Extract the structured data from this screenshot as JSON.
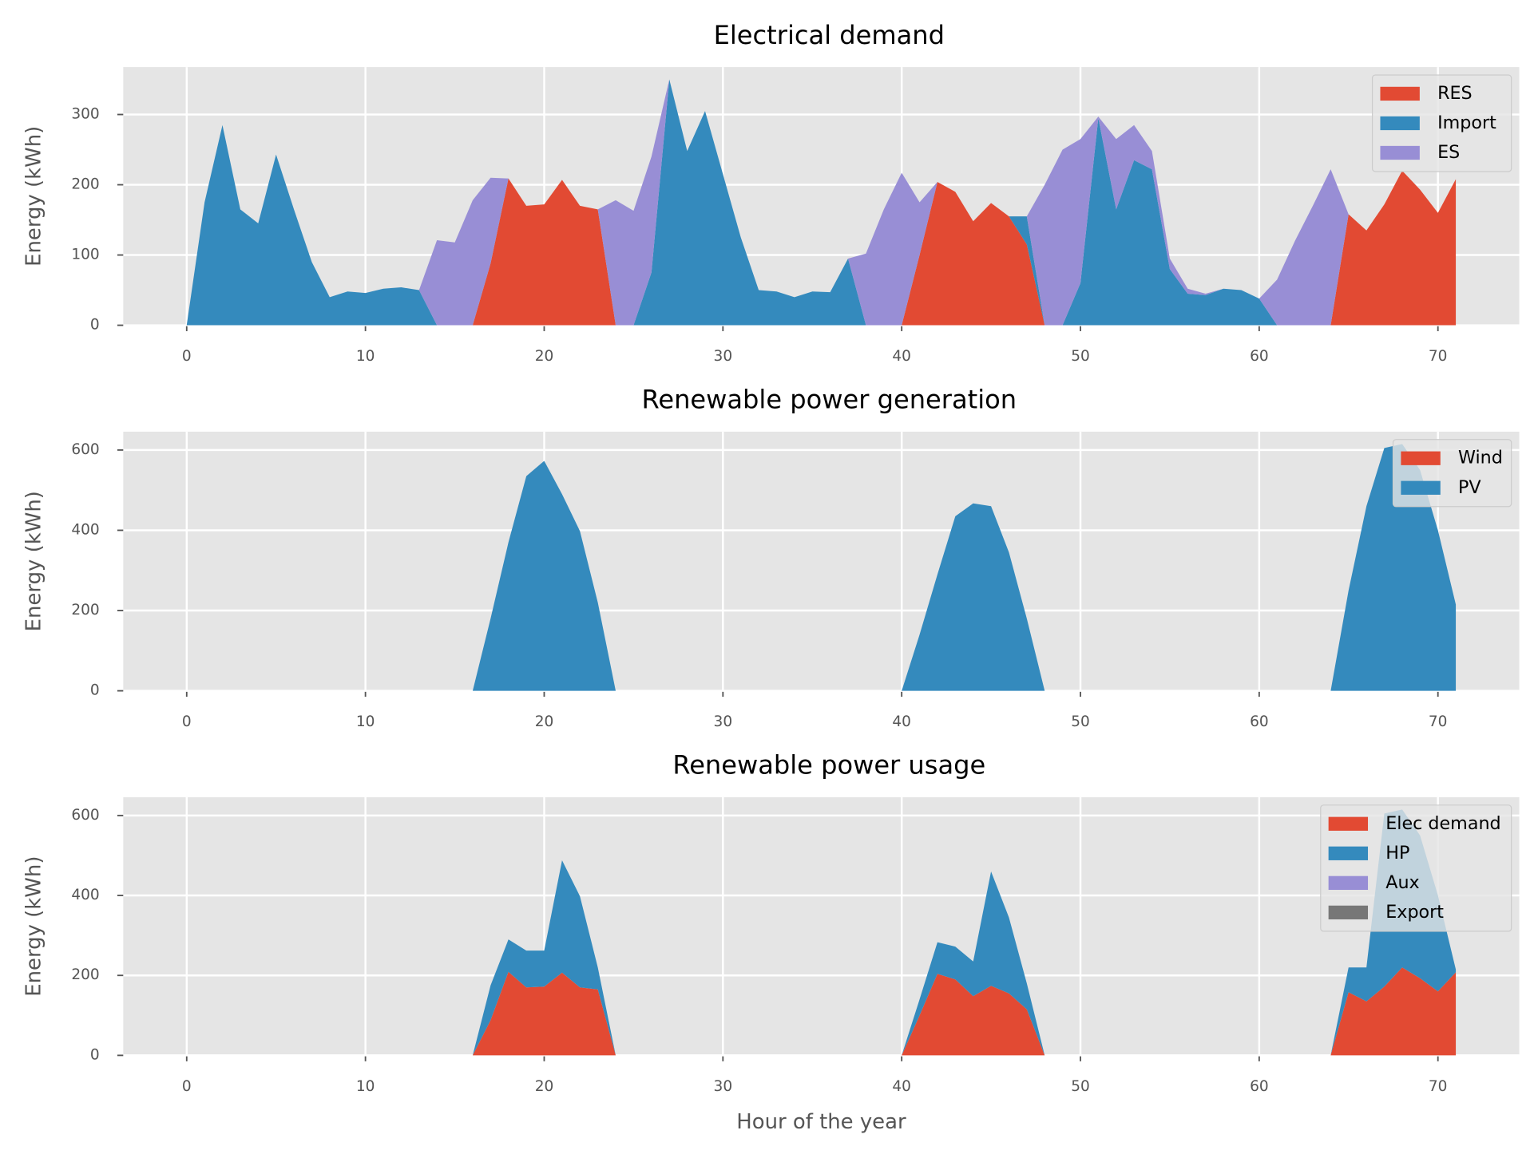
{
  "chart_data": [
    {
      "type": "stacked-area",
      "title": "Electrical demand",
      "ylabel": "Energy (kWh)",
      "x": [
        0,
        1,
        2,
        3,
        4,
        5,
        6,
        7,
        8,
        9,
        10,
        11,
        12,
        13,
        14,
        15,
        16,
        17,
        18,
        19,
        20,
        21,
        22,
        23,
        24,
        25,
        26,
        27,
        28,
        29,
        30,
        31,
        32,
        33,
        34,
        35,
        36,
        37,
        38,
        39,
        40,
        41,
        42,
        43,
        44,
        45,
        46,
        47,
        48,
        49,
        50,
        51,
        52,
        53,
        54,
        55,
        56,
        57,
        58,
        59,
        60,
        61,
        62,
        63,
        64,
        65,
        66,
        67,
        68,
        69,
        70,
        71
      ],
      "xlim": [
        -3.55,
        74.55
      ],
      "xticks": [
        0,
        10,
        20,
        30,
        40,
        50,
        60,
        70
      ],
      "ylim": [
        0,
        367.5
      ],
      "yticks": [
        0,
        100,
        200,
        300
      ],
      "grid": true,
      "legend": "upper right",
      "series": [
        {
          "name": "RES",
          "color": "#E24A33",
          "values": [
            0,
            0,
            0,
            0,
            0,
            0,
            0,
            0,
            0,
            0,
            0,
            0,
            0,
            0,
            0,
            0,
            0,
            88,
            209,
            170,
            172,
            207,
            170,
            165,
            0,
            0,
            0,
            0,
            0,
            0,
            0,
            0,
            0,
            0,
            0,
            0,
            0,
            0,
            0,
            0,
            0,
            100,
            204,
            190,
            148,
            174,
            155,
            115,
            0,
            0,
            0,
            0,
            0,
            0,
            0,
            0,
            0,
            0,
            0,
            0,
            0,
            0,
            0,
            0,
            0,
            158,
            135,
            172,
            220,
            193,
            160,
            208
          ]
        },
        {
          "name": "Import",
          "color": "#348ABD",
          "values": [
            0,
            175,
            285,
            165,
            145,
            243,
            165,
            90,
            40,
            48,
            46,
            52,
            54,
            50,
            0,
            0,
            0,
            0,
            0,
            0,
            0,
            0,
            0,
            0,
            0,
            0,
            75,
            350,
            248,
            305,
            215,
            125,
            50,
            48,
            40,
            48,
            47,
            95,
            0,
            0,
            0,
            0,
            0,
            0,
            0,
            0,
            0,
            40,
            0,
            0,
            60,
            295,
            165,
            235,
            222,
            80,
            45,
            43,
            52,
            50,
            38,
            0,
            0,
            0,
            0,
            0,
            0,
            0,
            0,
            0,
            0,
            0
          ]
        },
        {
          "name": "ES",
          "color": "#988ED5",
          "values": [
            0,
            0,
            0,
            0,
            0,
            0,
            0,
            0,
            0,
            0,
            0,
            0,
            0,
            0,
            121,
            118,
            178,
            122,
            0,
            0,
            0,
            0,
            0,
            0,
            178,
            163,
            165,
            0,
            0,
            0,
            0,
            0,
            0,
            0,
            0,
            0,
            0,
            0,
            102,
            165,
            217,
            75,
            0,
            0,
            0,
            0,
            0,
            0,
            200,
            250,
            205,
            2,
            100,
            50,
            26,
            15,
            7,
            2,
            0,
            0,
            0,
            65,
            120,
            170,
            222,
            0,
            0,
            0,
            0,
            0,
            0,
            0
          ]
        }
      ]
    },
    {
      "type": "stacked-area",
      "title": "Renewable power generation",
      "ylabel": "Energy (kWh)",
      "x": [
        0,
        1,
        2,
        3,
        4,
        5,
        6,
        7,
        8,
        9,
        10,
        11,
        12,
        13,
        14,
        15,
        16,
        17,
        18,
        19,
        20,
        21,
        22,
        23,
        24,
        25,
        26,
        27,
        28,
        29,
        30,
        31,
        32,
        33,
        34,
        35,
        36,
        37,
        38,
        39,
        40,
        41,
        42,
        43,
        44,
        45,
        46,
        47,
        48,
        49,
        50,
        51,
        52,
        53,
        54,
        55,
        56,
        57,
        58,
        59,
        60,
        61,
        62,
        63,
        64,
        65,
        66,
        67,
        68,
        69,
        70,
        71
      ],
      "xlim": [
        -3.55,
        74.55
      ],
      "xticks": [
        0,
        10,
        20,
        30,
        40,
        50,
        60,
        70
      ],
      "ylim": [
        0,
        645.75
      ],
      "yticks": [
        0,
        200,
        400,
        600
      ],
      "grid": true,
      "legend": "upper right",
      "series": [
        {
          "name": "Wind",
          "color": "#E24A33",
          "values": [
            0,
            0,
            0,
            0,
            0,
            0,
            0,
            0,
            0,
            0,
            0,
            0,
            0,
            0,
            0,
            0,
            0,
            0,
            0,
            0,
            0,
            0,
            0,
            0,
            0,
            0,
            0,
            0,
            0,
            0,
            0,
            0,
            0,
            0,
            0,
            0,
            0,
            0,
            0,
            0,
            0,
            0,
            0,
            0,
            0,
            0,
            0,
            0,
            0,
            0,
            0,
            0,
            0,
            0,
            0,
            0,
            0,
            0,
            0,
            0,
            0,
            0,
            0,
            0,
            0,
            0,
            0,
            0,
            0,
            0,
            0,
            0
          ]
        },
        {
          "name": "PV",
          "color": "#348ABD",
          "values": [
            0,
            0,
            0,
            0,
            0,
            0,
            0,
            0,
            0,
            0,
            0,
            0,
            0,
            0,
            0,
            0,
            0,
            180,
            370,
            535,
            573,
            490,
            398,
            220,
            0,
            0,
            0,
            0,
            0,
            0,
            0,
            0,
            0,
            0,
            0,
            0,
            0,
            0,
            0,
            0,
            0,
            140,
            290,
            435,
            467,
            460,
            345,
            180,
            0,
            0,
            0,
            0,
            0,
            0,
            0,
            0,
            0,
            0,
            0,
            0,
            0,
            0,
            0,
            0,
            0,
            250,
            460,
            605,
            615,
            550,
            400,
            215
          ]
        }
      ]
    },
    {
      "type": "stacked-area",
      "title": "Renewable power usage",
      "ylabel": "Energy (kWh)",
      "xlabel": "Hour of the year",
      "x": [
        0,
        1,
        2,
        3,
        4,
        5,
        6,
        7,
        8,
        9,
        10,
        11,
        12,
        13,
        14,
        15,
        16,
        17,
        18,
        19,
        20,
        21,
        22,
        23,
        24,
        25,
        26,
        27,
        28,
        29,
        30,
        31,
        32,
        33,
        34,
        35,
        36,
        37,
        38,
        39,
        40,
        41,
        42,
        43,
        44,
        45,
        46,
        47,
        48,
        49,
        50,
        51,
        52,
        53,
        54,
        55,
        56,
        57,
        58,
        59,
        60,
        61,
        62,
        63,
        64,
        65,
        66,
        67,
        68,
        69,
        70,
        71
      ],
      "xlim": [
        -3.55,
        74.55
      ],
      "xticks": [
        0,
        10,
        20,
        30,
        40,
        50,
        60,
        70
      ],
      "ylim": [
        0,
        645.75
      ],
      "yticks": [
        0,
        200,
        400,
        600
      ],
      "grid": true,
      "legend": "upper right",
      "series": [
        {
          "name": "Elec demand",
          "color": "#E24A33",
          "values": [
            0,
            0,
            0,
            0,
            0,
            0,
            0,
            0,
            0,
            0,
            0,
            0,
            0,
            0,
            0,
            0,
            0,
            88,
            209,
            170,
            172,
            207,
            170,
            165,
            0,
            0,
            0,
            0,
            0,
            0,
            0,
            0,
            0,
            0,
            0,
            0,
            0,
            0,
            0,
            0,
            0,
            100,
            204,
            190,
            148,
            174,
            155,
            115,
            0,
            0,
            0,
            0,
            0,
            0,
            0,
            0,
            0,
            0,
            0,
            0,
            0,
            0,
            0,
            0,
            0,
            158,
            135,
            172,
            220,
            193,
            160,
            208
          ]
        },
        {
          "name": "HP",
          "color": "#348ABD",
          "values": [
            0,
            0,
            0,
            0,
            0,
            0,
            0,
            0,
            0,
            0,
            0,
            0,
            0,
            0,
            0,
            0,
            0,
            87,
            81,
            92,
            90,
            281,
            228,
            55,
            0,
            0,
            0,
            0,
            0,
            0,
            0,
            0,
            0,
            0,
            0,
            0,
            0,
            0,
            0,
            0,
            0,
            40,
            79,
            82,
            87,
            286,
            190,
            65,
            0,
            0,
            0,
            0,
            0,
            0,
            0,
            0,
            0,
            0,
            0,
            0,
            0,
            0,
            0,
            0,
            0,
            62,
            85,
            433,
            395,
            357,
            240,
            7
          ]
        },
        {
          "name": "Aux",
          "color": "#988ED5",
          "values": [
            0,
            0,
            0,
            0,
            0,
            0,
            0,
            0,
            0,
            0,
            0,
            0,
            0,
            0,
            0,
            0,
            0,
            0,
            0,
            0,
            0,
            0,
            0,
            0,
            0,
            0,
            0,
            0,
            0,
            0,
            0,
            0,
            0,
            0,
            0,
            0,
            0,
            0,
            0,
            0,
            0,
            0,
            0,
            0,
            0,
            0,
            0,
            0,
            0,
            0,
            0,
            0,
            0,
            0,
            0,
            0,
            0,
            0,
            0,
            0,
            0,
            0,
            0,
            0,
            0,
            0,
            0,
            0,
            0,
            0,
            0,
            0
          ]
        },
        {
          "name": "Export",
          "color": "#777777",
          "values": [
            0,
            0,
            0,
            0,
            0,
            0,
            0,
            0,
            0,
            0,
            0,
            0,
            0,
            0,
            0,
            0,
            0,
            0,
            0,
            0,
            0,
            0,
            0,
            0,
            0,
            0,
            0,
            0,
            0,
            0,
            0,
            0,
            0,
            0,
            0,
            0,
            0,
            0,
            0,
            0,
            0,
            0,
            0,
            0,
            0,
            0,
            0,
            0,
            0,
            0,
            0,
            0,
            0,
            0,
            0,
            0,
            0,
            0,
            0,
            0,
            0,
            0,
            0,
            0,
            0,
            0,
            0,
            0,
            0,
            0,
            0,
            0
          ]
        }
      ]
    }
  ]
}
